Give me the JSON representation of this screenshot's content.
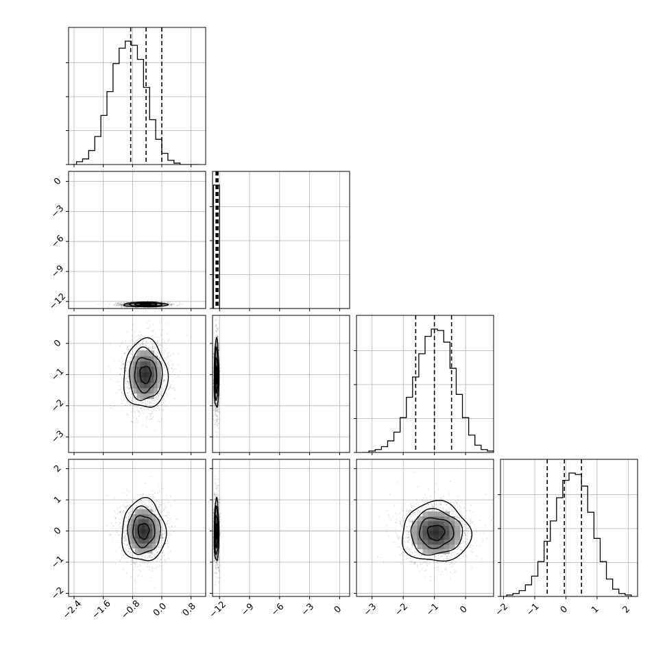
{
  "chart_data": {
    "type": "corner",
    "title": "",
    "parameters": [
      {
        "label": "",
        "range": [
          -2.55,
          1.2
        ],
        "ticks": [
          -2.4,
          -1.6,
          -0.8,
          0.0,
          0.8
        ],
        "tick_labels": [
          "−2.4",
          "−1.6",
          "−0.8",
          "0.0",
          "0.8"
        ],
        "quantiles": [
          -0.85,
          -0.43,
          0.0
        ],
        "hist_bins": {
          "edges_from": -2.5,
          "edges_to": 1.0,
          "counts": [
            0,
            2,
            4,
            10,
            20,
            35,
            52,
            72,
            83,
            88,
            85,
            75,
            55,
            32,
            18,
            8,
            3,
            1,
            0,
            0,
            0
          ]
        }
      },
      {
        "label": "",
        "range": [
          -12.7,
          1.0
        ],
        "ticks": [
          -12,
          -9,
          -6,
          -3,
          0
        ],
        "tick_labels": [
          "−12",
          "−9",
          "−6",
          "−3",
          "0"
        ],
        "quantiles": [
          -12.35,
          -12.25,
          -12.15
        ],
        "hist_bins": {
          "edges_from": -12.6,
          "edges_to": -12.0,
          "counts": [
            100
          ]
        }
      },
      {
        "label": "",
        "range": [
          -3.5,
          0.9
        ],
        "ticks": [
          -3,
          -2,
          -1,
          0
        ],
        "tick_labels": [
          "−3",
          "−2",
          "−1",
          "0"
        ],
        "quantiles": [
          -1.6,
          -1.0,
          -0.45
        ],
        "hist_bins": {
          "edges_from": -3.3,
          "edges_to": 0.9,
          "counts": [
            0,
            1,
            2,
            4,
            8,
            14,
            24,
            38,
            52,
            68,
            80,
            85,
            84,
            76,
            58,
            40,
            24,
            12,
            5,
            2,
            1
          ]
        }
      },
      {
        "label": "",
        "range": [
          -2.1,
          2.3
        ],
        "ticks": [
          -2,
          -1,
          0,
          1,
          2
        ],
        "tick_labels": [
          "−2",
          "−1",
          "0",
          "1",
          "2"
        ],
        "quantiles": [
          -0.6,
          -0.05,
          0.5
        ],
        "hist_bins": {
          "edges_from": -2.1,
          "edges_to": 2.1,
          "counts": [
            0,
            1,
            2,
            4,
            8,
            14,
            24,
            38,
            52,
            68,
            80,
            85,
            84,
            76,
            58,
            40,
            24,
            12,
            5,
            2,
            1
          ]
        }
      }
    ],
    "pairs": [
      {
        "x": 0,
        "y": 1,
        "center": [
          -0.45,
          -12.3
        ],
        "spread": [
          0.3,
          0.12
        ]
      },
      {
        "x": 0,
        "y": 2,
        "center": [
          -0.45,
          -1.0
        ],
        "spread": [
          0.3,
          0.55
        ]
      },
      {
        "x": 0,
        "y": 3,
        "center": [
          -0.5,
          0.0
        ],
        "spread": [
          0.3,
          0.5
        ]
      },
      {
        "x": 1,
        "y": 2,
        "center": [
          -12.3,
          -1.0
        ],
        "spread": [
          0.12,
          0.55
        ]
      },
      {
        "x": 1,
        "y": 3,
        "center": [
          -12.3,
          0.0
        ],
        "spread": [
          0.12,
          0.5
        ]
      },
      {
        "x": 2,
        "y": 3,
        "center": [
          -0.95,
          -0.05
        ],
        "spread": [
          0.55,
          0.48
        ]
      }
    ],
    "grid": true,
    "contour_levels_sigma": [
      0.5,
      1.0,
      1.5,
      2.0
    ]
  }
}
